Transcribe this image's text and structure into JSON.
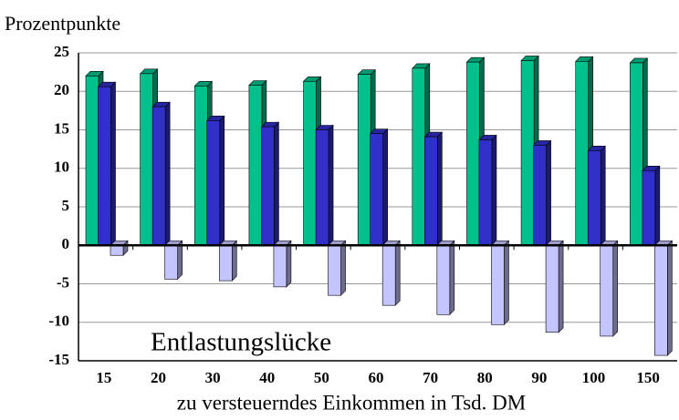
{
  "chart_data": {
    "type": "bar3d",
    "y_label": "Prozentpunkte",
    "x_label": "zu versteuerndes Einkommen in Tsd. DM",
    "annotation": "Entlastungslücke",
    "categories": [
      "15",
      "20",
      "30",
      "40",
      "50",
      "60",
      "70",
      "80",
      "90",
      "100",
      "150"
    ],
    "series": [
      {
        "color": "#00c08c",
        "values": [
          22,
          22.3,
          20.7,
          20.8,
          21.3,
          22.2,
          23,
          23.8,
          24,
          23.9,
          23.7
        ]
      },
      {
        "color": "#3030c8",
        "values": [
          20.6,
          18,
          16.2,
          15.4,
          15,
          14.5,
          14.1,
          13.7,
          13,
          12.3,
          9.7
        ]
      },
      {
        "color": "#c4c4ff",
        "values": [
          -1.3,
          -4.4,
          -4.6,
          -5.4,
          -6.5,
          -7.8,
          -9,
          -10.3,
          -11.3,
          -11.8,
          -14.3
        ]
      }
    ],
    "ylim": [
      -15,
      25
    ],
    "yticks": [
      -15,
      -10,
      -5,
      0,
      5,
      10,
      15,
      20,
      25
    ],
    "grid": true
  }
}
